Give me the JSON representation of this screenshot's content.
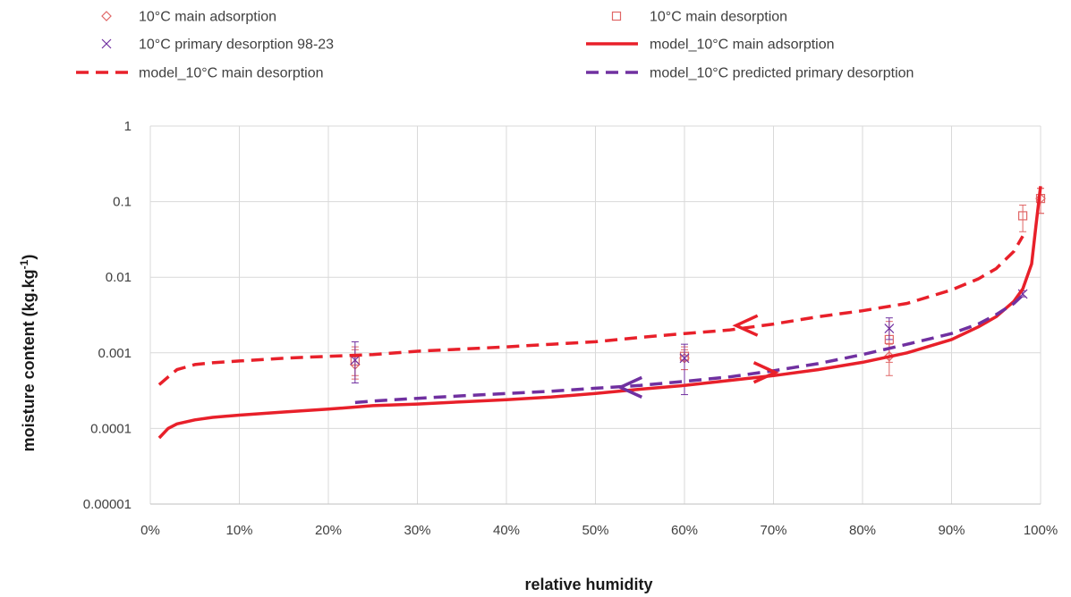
{
  "chart_data": {
    "type": "scatter",
    "xlabel": "relative humidity",
    "ylabel": "moisture content (kg.kg",
    "ylabel_superscript": "-1",
    "ylabel_suffix": ")",
    "xlim": [
      0,
      1
    ],
    "ylim": [
      1e-05,
      1
    ],
    "y_scale": "log",
    "grid": true,
    "x_ticks": [
      0,
      0.1,
      0.2,
      0.3,
      0.4,
      0.5,
      0.6,
      0.7,
      0.8,
      0.9,
      1.0
    ],
    "x_tick_labels": [
      "0%",
      "10%",
      "20%",
      "30%",
      "40%",
      "50%",
      "60%",
      "70%",
      "80%",
      "90%",
      "100%"
    ],
    "y_ticks": [
      1e-05,
      0.0001,
      0.001,
      0.01,
      0.1,
      1
    ],
    "y_tick_labels": [
      "0.00001",
      "0.0001",
      "0.001",
      "0.01",
      "0.1",
      "1"
    ],
    "legend_position": "top",
    "colors": {
      "red": "#e8202a",
      "purple": "#7030a0",
      "pink": "#e06666",
      "grid": "#d9d9d9"
    },
    "series": [
      {
        "name": "10°C main adsorption",
        "kind": "markers",
        "marker": "diamond",
        "x": [
          0.23,
          0.6,
          0.83,
          1.0
        ],
        "y": [
          0.0007,
          0.00085,
          0.0009,
          0.11
        ],
        "err_low": [
          0.00045,
          0.0006,
          0.0005,
          0.07
        ],
        "err_high": [
          0.0011,
          0.0011,
          0.0013,
          0.15
        ]
      },
      {
        "name": "10°C main desorption",
        "kind": "markers",
        "marker": "square",
        "x": [
          0.23,
          0.6,
          0.83,
          0.98,
          1.0
        ],
        "y": [
          0.00078,
          0.0009,
          0.0015,
          0.065,
          0.11
        ],
        "err_low": [
          0.0005,
          0.0006,
          0.00075,
          0.04,
          0.07
        ],
        "err_high": [
          0.0012,
          0.0012,
          0.0026,
          0.09,
          0.15
        ]
      },
      {
        "name": "10°C primary desorption 98-23",
        "kind": "markers",
        "marker": "x",
        "x": [
          0.23,
          0.6,
          0.83,
          0.98
        ],
        "y": [
          0.0008,
          0.00085,
          0.0021,
          0.006
        ],
        "err_low": [
          0.0004,
          0.00028,
          0.0015,
          0.0055
        ],
        "err_high": [
          0.0014,
          0.0013,
          0.0029,
          0.0066
        ]
      },
      {
        "name": "model_10°C main adsorption",
        "kind": "line",
        "style": "solid",
        "x": [
          0.01,
          0.02,
          0.03,
          0.05,
          0.07,
          0.1,
          0.15,
          0.2,
          0.25,
          0.3,
          0.35,
          0.4,
          0.45,
          0.5,
          0.55,
          0.6,
          0.65,
          0.7,
          0.75,
          0.8,
          0.85,
          0.9,
          0.93,
          0.95,
          0.97,
          0.98,
          0.99,
          0.995,
          1.0
        ],
        "y": [
          7.5e-05,
          0.0001,
          0.000115,
          0.00013,
          0.00014,
          0.00015,
          0.000165,
          0.00018,
          0.0002,
          0.00021,
          0.000225,
          0.00024,
          0.00026,
          0.00029,
          0.00033,
          0.00037,
          0.00043,
          0.0005,
          0.0006,
          0.00075,
          0.001,
          0.0015,
          0.0022,
          0.003,
          0.0048,
          0.007,
          0.015,
          0.05,
          0.16
        ]
      },
      {
        "name": "model_10°C main desorption",
        "kind": "line",
        "style": "dashed",
        "x": [
          0.01,
          0.02,
          0.03,
          0.05,
          0.07,
          0.1,
          0.15,
          0.2,
          0.25,
          0.3,
          0.35,
          0.4,
          0.45,
          0.5,
          0.55,
          0.6,
          0.65,
          0.7,
          0.75,
          0.8,
          0.85,
          0.9,
          0.93,
          0.95,
          0.97,
          0.98
        ],
        "y": [
          0.00038,
          0.00048,
          0.0006,
          0.0007,
          0.00074,
          0.00078,
          0.00085,
          0.0009,
          0.00095,
          0.00105,
          0.00112,
          0.0012,
          0.0013,
          0.0014,
          0.0016,
          0.0018,
          0.002,
          0.0024,
          0.003,
          0.0036,
          0.0045,
          0.0068,
          0.0095,
          0.013,
          0.022,
          0.035
        ]
      },
      {
        "name": "model_10°C predicted primary desorption",
        "kind": "line",
        "style": "dashed",
        "x": [
          0.23,
          0.25,
          0.3,
          0.35,
          0.4,
          0.45,
          0.5,
          0.55,
          0.6,
          0.65,
          0.7,
          0.75,
          0.8,
          0.85,
          0.9,
          0.93,
          0.95,
          0.97,
          0.98
        ],
        "y": [
          0.00022,
          0.00023,
          0.00025,
          0.00027,
          0.00029,
          0.00031,
          0.00034,
          0.00037,
          0.00042,
          0.00048,
          0.00058,
          0.00072,
          0.00095,
          0.0013,
          0.0018,
          0.0024,
          0.0032,
          0.0045,
          0.0058
        ]
      }
    ],
    "annotations": [
      {
        "type": "arrow",
        "direction": "left",
        "x": 0.67,
        "y": 0.0023,
        "color": "red"
      },
      {
        "type": "arrow",
        "direction": "right",
        "x": 0.69,
        "y": 0.00055,
        "color": "red"
      },
      {
        "type": "arrow",
        "direction": "left",
        "x": 0.54,
        "y": 0.00035,
        "color": "purple"
      }
    ]
  }
}
